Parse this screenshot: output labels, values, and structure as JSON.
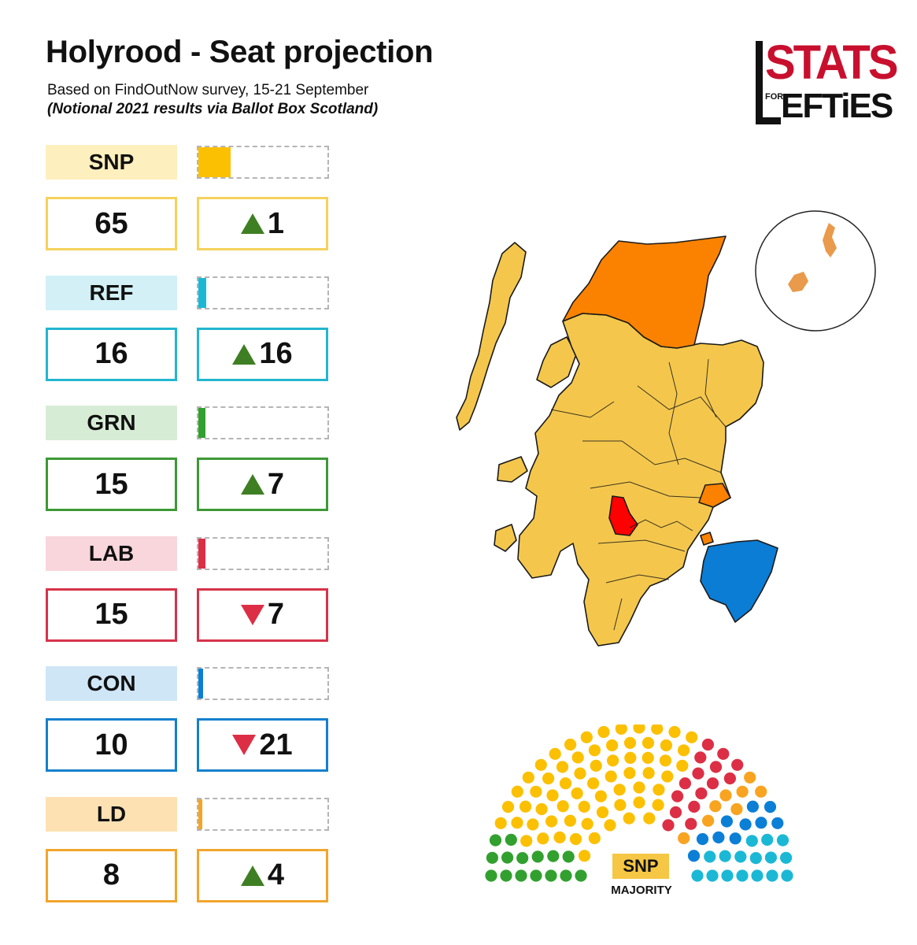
{
  "title": "Holyrood - Seat projection",
  "subtitle": "Based on FindOutNow survey, 15-21 September",
  "note": "(Notional 2021 results via Ballot Box Scotland)",
  "logo": {
    "top": "STATS",
    "small": "FOR",
    "bottom": "EFTiES"
  },
  "majority": {
    "party": "SNP",
    "label": "MAJORITY"
  },
  "chart_data": {
    "type": "bar",
    "categories": [
      "SNP",
      "REF",
      "GRN",
      "LAB",
      "CON",
      "LD"
    ],
    "values": [
      65,
      16,
      15,
      15,
      10,
      8
    ],
    "changes": [
      "1",
      "16",
      "7",
      "7",
      "21",
      "4"
    ],
    "change_direction": [
      "up",
      "up",
      "up",
      "down",
      "down",
      "up"
    ],
    "total_seats": 129,
    "colors": {
      "SNP": "#fcc002",
      "REF": "#1bb8d6",
      "GRN": "#32a02f",
      "LAB": "#dc2f45",
      "CON": "#0b7fd6",
      "LD": "#f8a420"
    },
    "label_backgrounds": {
      "SNP": "#fdefbe",
      "REF": "#d2f0f6",
      "GRN": "#d7ecd5",
      "LAB": "#f8d6dc",
      "CON": "#cfe6f6",
      "LD": "#fde1b2"
    },
    "box_borders": {
      "SNP": "#f5d25c",
      "REF": "#22b6cf",
      "GRN": "#3d9935",
      "LAB": "#d6334b",
      "CON": "#1580cd",
      "LD": "#f2a52c"
    }
  },
  "map_colors": {
    "snp": "#f4c74c",
    "ld": "#fa8200",
    "lab": "#ff0000",
    "con": "#0b7dd4",
    "islands": "#e99a4a"
  }
}
